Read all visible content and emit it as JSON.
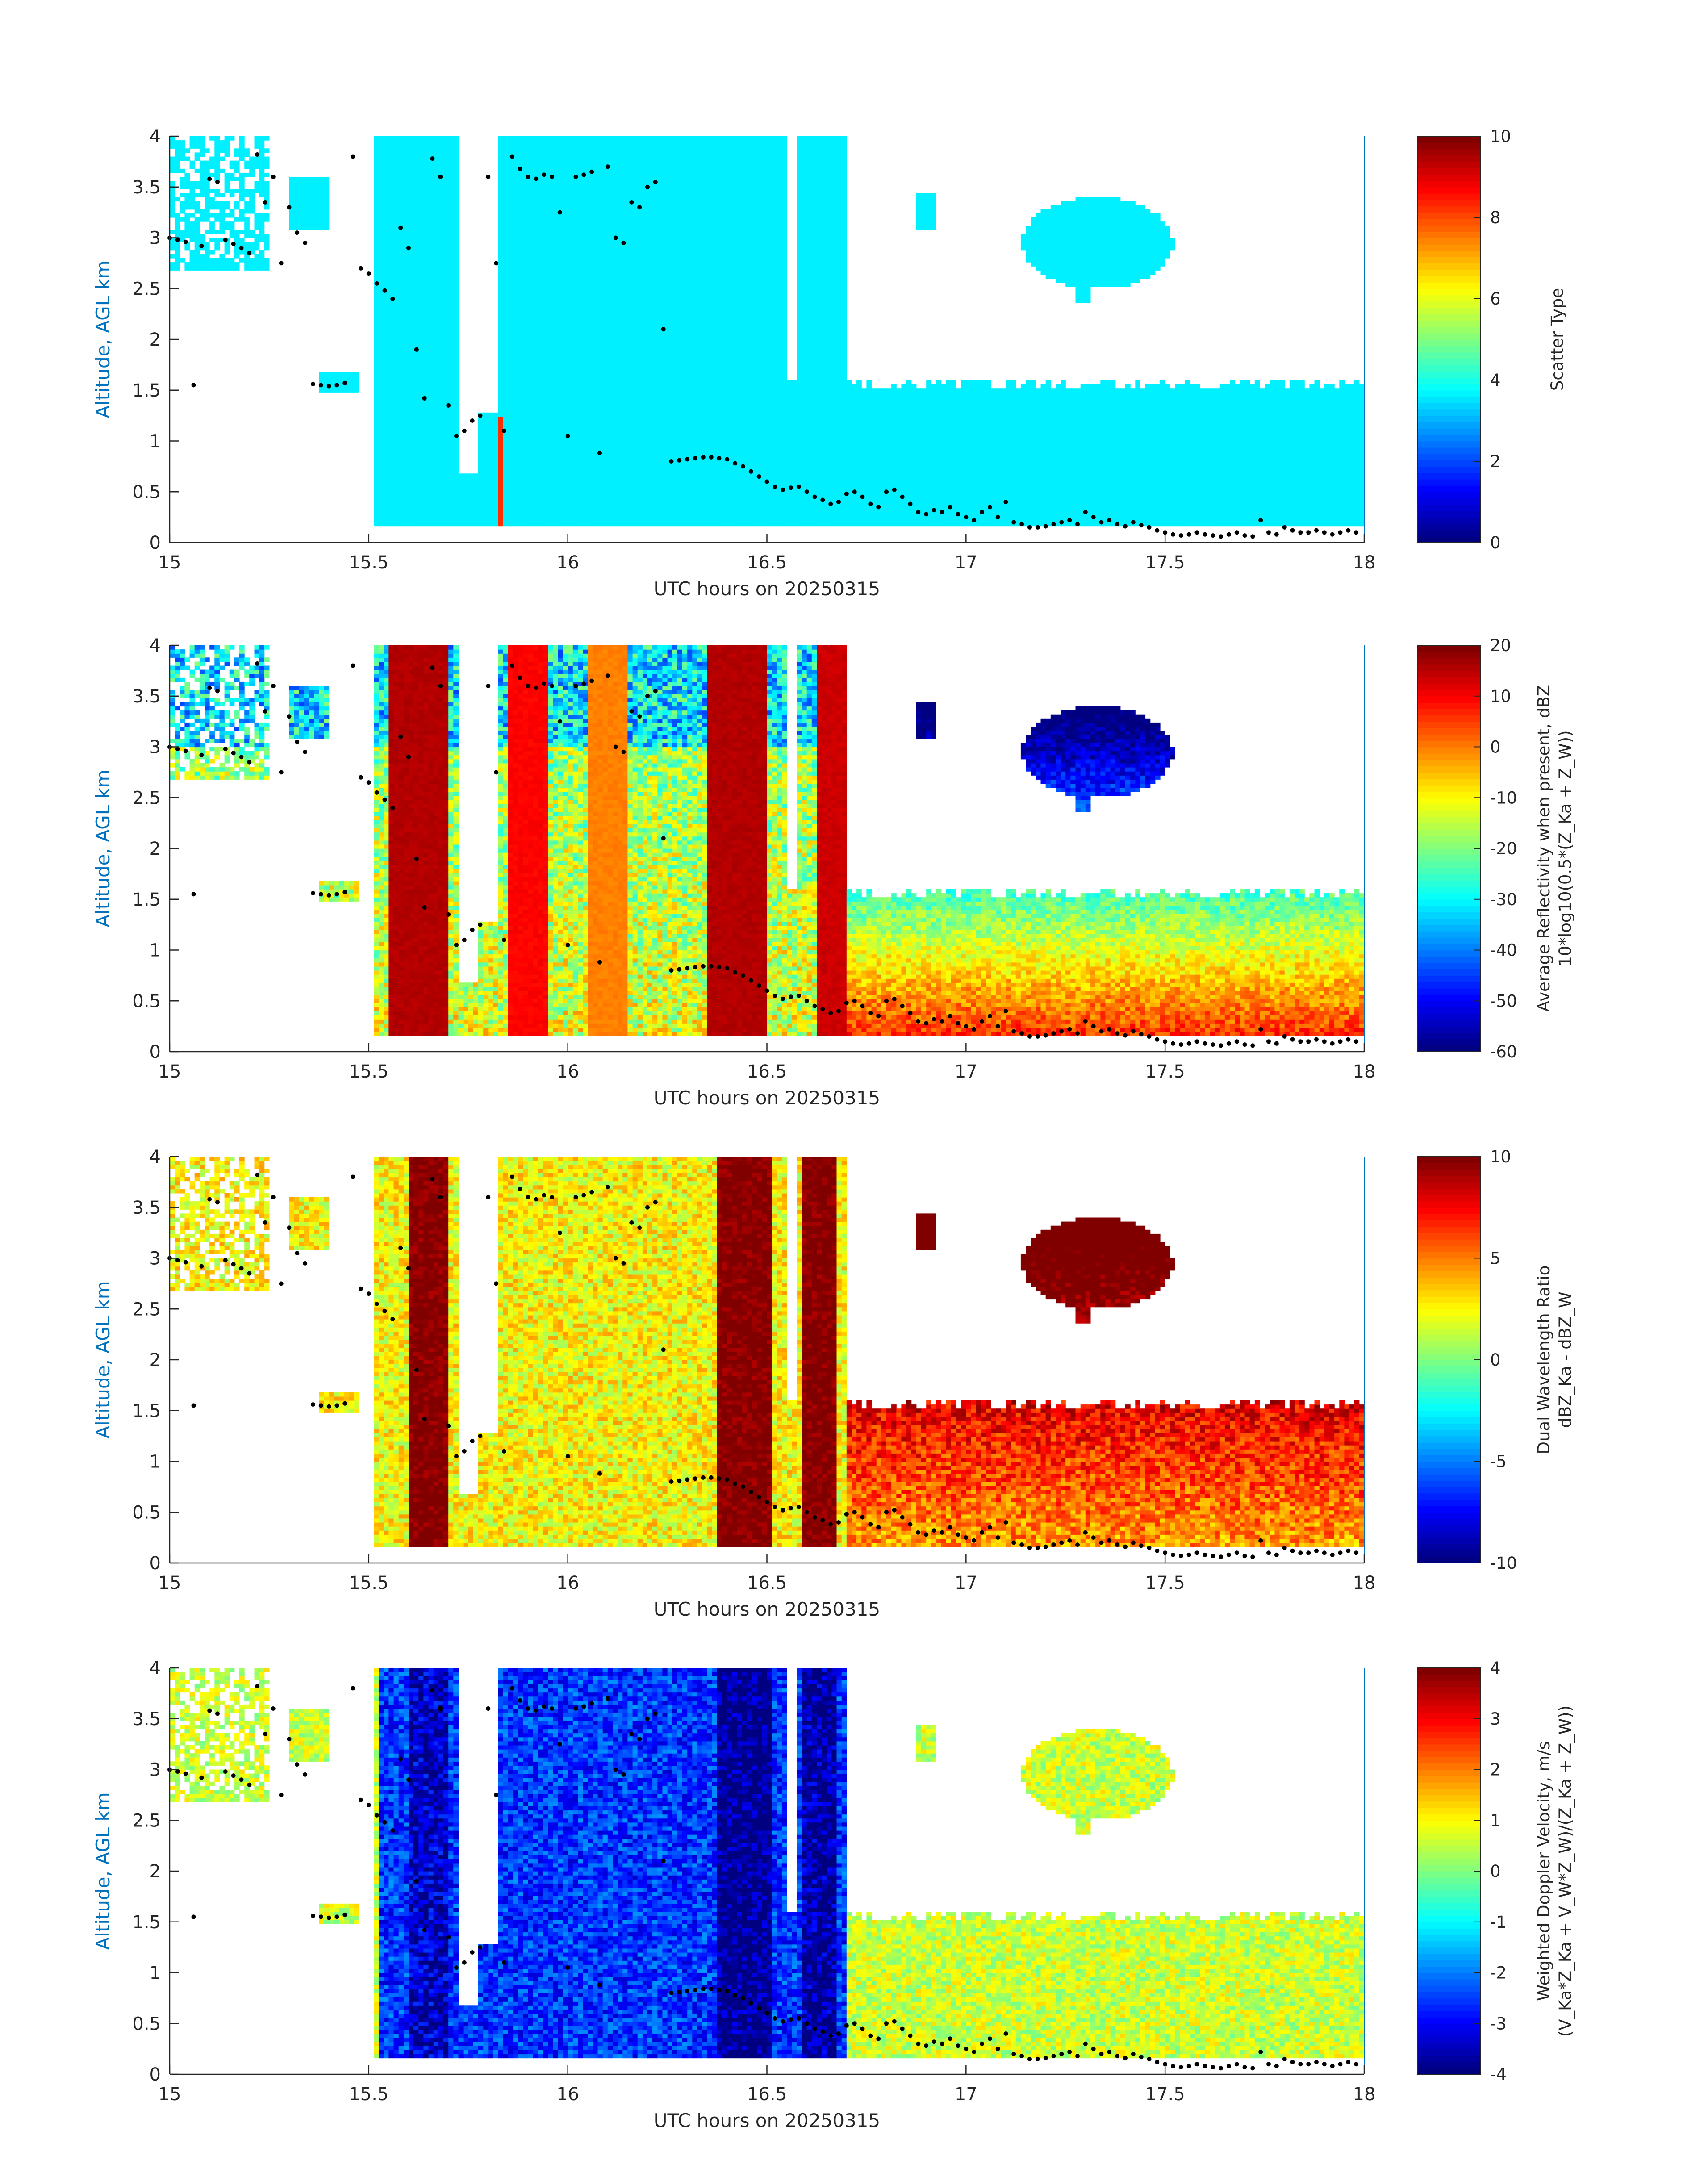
{
  "chart_data": [
    {
      "type": "heatmap",
      "variable": "scatter_type",
      "xlabel": "UTC hours on 20250315",
      "ylabel": "Altitude, AGL km",
      "xlim": [
        15,
        18
      ],
      "ylim": [
        0,
        4
      ],
      "xticks": [
        "15",
        "15.5",
        "16",
        "16.5",
        "17",
        "17.5",
        "18"
      ],
      "yticks": [
        "0",
        "0.5",
        "1",
        "1.5",
        "2",
        "2.5",
        "3",
        "3.5",
        "4"
      ],
      "colorbar": {
        "label_lines": [
          "Scatter Type"
        ],
        "range": [
          0,
          10
        ],
        "ticks": [
          "0",
          "2",
          "4",
          "6",
          "8",
          "10"
        ],
        "colormap": "jet"
      },
      "regions": [
        {
          "name": "cloud",
          "value": 3.6,
          "pattern": "scatter"
        },
        {
          "name": "precip-column",
          "value": 8.3,
          "x": [
            15.82,
            15.84
          ],
          "y": [
            0.18,
            1.25
          ]
        }
      ]
    },
    {
      "type": "heatmap",
      "variable": "average_reflectivity",
      "xlabel": "UTC hours on 20250315",
      "ylabel": "Altitude, AGL km",
      "xlim": [
        15,
        18
      ],
      "ylim": [
        0,
        4
      ],
      "xticks": [
        "15",
        "15.5",
        "16",
        "16.5",
        "17",
        "17.5",
        "18"
      ],
      "yticks": [
        "0",
        "0.5",
        "1",
        "1.5",
        "2",
        "2.5",
        "3",
        "3.5",
        "4"
      ],
      "colorbar": {
        "label_lines": [
          "Average Reflectivity when present, dBZ",
          "10*log10(0.5*(Z_Ka + Z_W))"
        ],
        "range": [
          -60,
          20
        ],
        "ticks": [
          "-60",
          "-50",
          "-40",
          "-30",
          "-20",
          "-10",
          "0",
          "10",
          "20"
        ],
        "colormap": "jet"
      },
      "column_bands": [
        {
          "x": [
            15.55,
            15.7
          ],
          "value": 16
        },
        {
          "x": [
            15.85,
            15.95
          ],
          "value": 10
        },
        {
          "x": [
            16.05,
            16.15
          ],
          "value": 0
        },
        {
          "x": [
            16.35,
            16.5
          ],
          "value": 16
        },
        {
          "x": [
            16.62,
            16.7
          ],
          "value": 14
        }
      ]
    },
    {
      "type": "heatmap",
      "variable": "dual_wavelength_ratio",
      "xlabel": "UTC hours on 20250315",
      "ylabel": "Altitude, AGL km",
      "xlim": [
        15,
        18
      ],
      "ylim": [
        0,
        4
      ],
      "xticks": [
        "15",
        "15.5",
        "16",
        "16.5",
        "17",
        "17.5",
        "18"
      ],
      "yticks": [
        "0",
        "0.5",
        "1",
        "1.5",
        "2",
        "2.5",
        "3",
        "3.5",
        "4"
      ],
      "colorbar": {
        "label_lines": [
          "Dual Wavelength Ratio",
          "dBZ_Ka - dBZ_W"
        ],
        "range": [
          -10,
          10
        ],
        "ticks": [
          "-10",
          "-5",
          "0",
          "5",
          "10"
        ],
        "colormap": "jet"
      },
      "column_bands": [
        {
          "x": [
            15.6,
            15.7
          ],
          "value": 10
        },
        {
          "x": [
            16.37,
            16.51
          ],
          "value": 10
        },
        {
          "x": [
            16.59,
            16.68
          ],
          "value": 10
        }
      ]
    },
    {
      "type": "heatmap",
      "variable": "weighted_doppler_velocity",
      "xlabel": "UTC hours on 20250315",
      "ylabel": "Altitude, AGL km",
      "xlim": [
        15,
        18
      ],
      "ylim": [
        0,
        4
      ],
      "xticks": [
        "15",
        "15.5",
        "16",
        "16.5",
        "17",
        "17.5",
        "18"
      ],
      "yticks": [
        "0",
        "0.5",
        "1",
        "1.5",
        "2",
        "2.5",
        "3",
        "3.5",
        "4"
      ],
      "colorbar": {
        "label_lines": [
          "Weighted Doppler Velocity, m/s",
          "(V_Ka*Z_Ka + V_W*Z_W)/(Z_Ka + Z_W))"
        ],
        "range": [
          -4,
          4
        ],
        "ticks": [
          "-4",
          "-3",
          "-2",
          "-1",
          "0",
          "1",
          "2",
          "3",
          "4"
        ],
        "colormap": "jet"
      },
      "column_bands": [
        {
          "x": [
            15.6,
            15.7
          ],
          "value": -3.5
        },
        {
          "x": [
            16.37,
            16.51
          ],
          "value": -4
        },
        {
          "x": [
            16.59,
            16.68
          ],
          "value": -3.8
        }
      ]
    }
  ],
  "overlay_points": {
    "x": [
      15.0,
      15.02,
      15.04,
      15.06,
      15.08,
      15.1,
      15.12,
      15.14,
      15.16,
      15.18,
      15.2,
      15.22,
      15.24,
      15.26,
      15.28,
      15.3,
      15.32,
      15.34,
      15.36,
      15.38,
      15.4,
      15.42,
      15.44,
      15.46,
      15.48,
      15.5,
      15.52,
      15.54,
      15.56,
      15.58,
      15.6,
      15.62,
      15.64,
      15.66,
      15.68,
      15.7,
      15.72,
      15.74,
      15.76,
      15.78,
      15.8,
      15.82,
      15.84,
      15.86,
      15.88,
      15.9,
      15.92,
      15.94,
      15.96,
      15.98,
      16.0,
      16.02,
      16.04,
      16.06,
      16.08,
      16.1,
      16.12,
      16.14,
      16.16,
      16.18,
      16.2,
      16.22,
      16.24,
      16.26,
      16.28,
      16.3,
      16.32,
      16.34,
      16.36,
      16.38,
      16.4,
      16.42,
      16.44,
      16.46,
      16.48,
      16.5,
      16.52,
      16.54,
      16.56,
      16.58,
      16.6,
      16.62,
      16.64,
      16.66,
      16.68,
      16.7,
      16.72,
      16.74,
      16.76,
      16.78,
      16.8,
      16.82,
      16.84,
      16.86,
      16.88,
      16.9,
      16.92,
      16.94,
      16.96,
      16.98,
      17.0,
      17.02,
      17.04,
      17.06,
      17.08,
      17.1,
      17.12,
      17.14,
      17.16,
      17.18,
      17.2,
      17.22,
      17.24,
      17.26,
      17.28,
      17.3,
      17.32,
      17.34,
      17.36,
      17.38,
      17.4,
      17.42,
      17.44,
      17.46,
      17.48,
      17.5,
      17.52,
      17.54,
      17.56,
      17.58,
      17.6,
      17.62,
      17.64,
      17.66,
      17.68,
      17.7,
      17.72,
      17.74,
      17.76,
      17.78,
      17.8,
      17.82,
      17.84,
      17.86,
      17.88,
      17.9,
      17.92,
      17.94,
      17.96,
      17.98
    ],
    "y": [
      3.0,
      2.98,
      2.96,
      1.55,
      2.92,
      3.58,
      3.55,
      2.98,
      2.94,
      2.9,
      2.85,
      3.82,
      3.35,
      3.6,
      2.75,
      3.3,
      3.05,
      2.95,
      1.56,
      1.55,
      1.54,
      1.55,
      1.57,
      3.8,
      2.7,
      2.65,
      2.55,
      2.48,
      2.4,
      3.1,
      2.9,
      1.9,
      1.42,
      3.78,
      3.6,
      1.35,
      1.05,
      1.1,
      1.2,
      1.25,
      3.6,
      2.75,
      1.1,
      3.8,
      3.68,
      3.6,
      3.58,
      3.62,
      3.6,
      3.25,
      1.05,
      3.6,
      3.62,
      3.65,
      0.88,
      3.7,
      3.0,
      2.95,
      3.35,
      3.3,
      3.5,
      3.55,
      2.1,
      0.8,
      0.81,
      0.82,
      0.83,
      0.84,
      0.84,
      0.83,
      0.82,
      0.78,
      0.75,
      0.7,
      0.65,
      0.6,
      0.55,
      0.52,
      0.54,
      0.55,
      0.5,
      0.45,
      0.42,
      0.38,
      0.4,
      0.48,
      0.5,
      0.45,
      0.38,
      0.35,
      0.5,
      0.52,
      0.45,
      0.38,
      0.3,
      0.28,
      0.32,
      0.3,
      0.35,
      0.28,
      0.25,
      0.22,
      0.3,
      0.35,
      0.25,
      0.4,
      0.2,
      0.18,
      0.15,
      0.15,
      0.16,
      0.18,
      0.2,
      0.22,
      0.18,
      0.3,
      0.25,
      0.2,
      0.22,
      0.18,
      0.16,
      0.2,
      0.17,
      0.15,
      0.12,
      0.1,
      0.08,
      0.07,
      0.08,
      0.1,
      0.08,
      0.07,
      0.06,
      0.08,
      0.1,
      0.07,
      0.06,
      0.22,
      0.1,
      0.08,
      0.15,
      0.12,
      0.1,
      0.1,
      0.12,
      0.1,
      0.08,
      0.1,
      0.12,
      0.1
    ]
  }
}
